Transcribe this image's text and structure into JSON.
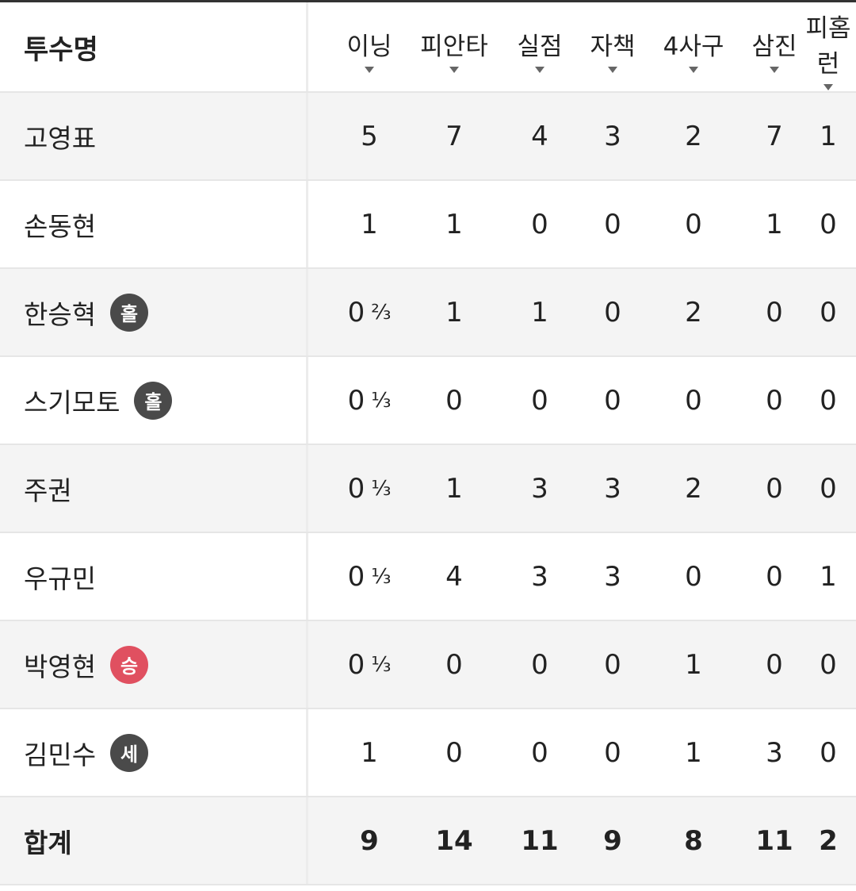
{
  "header": {
    "name_label": "투수명",
    "columns": [
      "이닝",
      "피안타",
      "실점",
      "자책",
      "4사구",
      "삼진",
      "피홈런"
    ]
  },
  "badge_colors": {
    "홀": "#4a4a4a",
    "세": "#4a4a4a",
    "승": "#e05060"
  },
  "rows": [
    {
      "name": "고영표",
      "badge": "",
      "innings": "5",
      "frac": "",
      "stats": [
        "7",
        "4",
        "3",
        "2",
        "7",
        "1"
      ]
    },
    {
      "name": "손동현",
      "badge": "",
      "innings": "1",
      "frac": "",
      "stats": [
        "1",
        "0",
        "0",
        "0",
        "1",
        "0"
      ]
    },
    {
      "name": "한승혁",
      "badge": "홀",
      "innings": "0",
      "frac": "⅔",
      "stats": [
        "1",
        "1",
        "0",
        "2",
        "0",
        "0"
      ]
    },
    {
      "name": "스기모토",
      "badge": "홀",
      "innings": "0",
      "frac": "⅓",
      "stats": [
        "0",
        "0",
        "0",
        "0",
        "0",
        "0"
      ]
    },
    {
      "name": "주권",
      "badge": "",
      "innings": "0",
      "frac": "⅓",
      "stats": [
        "1",
        "3",
        "3",
        "2",
        "0",
        "0"
      ]
    },
    {
      "name": "우규민",
      "badge": "",
      "innings": "0",
      "frac": "⅓",
      "stats": [
        "4",
        "3",
        "3",
        "0",
        "0",
        "1"
      ]
    },
    {
      "name": "박영현",
      "badge": "승",
      "innings": "0",
      "frac": "⅓",
      "stats": [
        "0",
        "0",
        "0",
        "1",
        "0",
        "0"
      ]
    },
    {
      "name": "김민수",
      "badge": "세",
      "innings": "1",
      "frac": "",
      "stats": [
        "0",
        "0",
        "0",
        "1",
        "3",
        "0"
      ]
    }
  ],
  "total": {
    "label": "합계",
    "innings": "9",
    "stats": [
      "14",
      "11",
      "9",
      "8",
      "11",
      "2"
    ]
  }
}
